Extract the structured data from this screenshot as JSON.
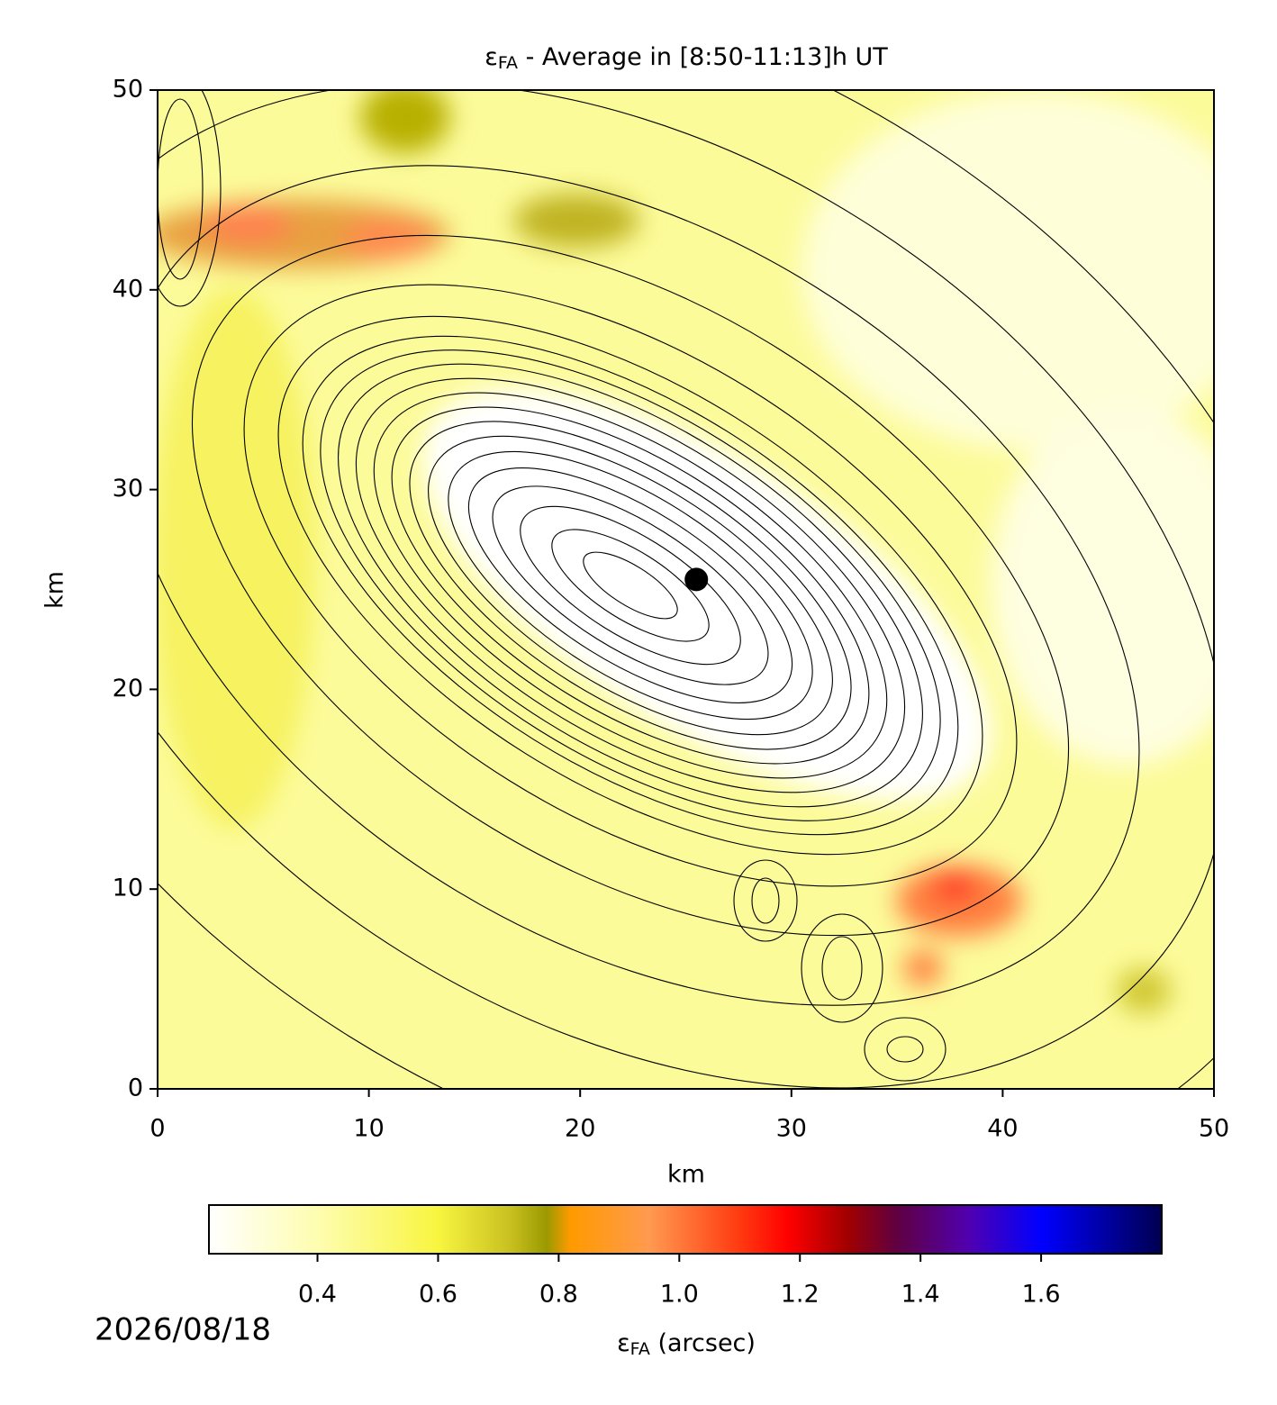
{
  "chart_data": {
    "type": "contour-map",
    "title": {
      "symbol": "ε",
      "subscript": "FA",
      "text": " - Average in [8:50-11:13]h UT"
    },
    "xlabel": "km",
    "ylabel": "km",
    "xlim": [
      0,
      50
    ],
    "ylim": [
      0,
      50
    ],
    "xticks": [
      0,
      10,
      20,
      30,
      40,
      50
    ],
    "yticks": [
      0,
      10,
      20,
      30,
      40,
      50
    ],
    "points": {
      "x": [
        25.5
      ],
      "y": [
        25.5
      ],
      "color": "#000000"
    },
    "colorbar": {
      "label": {
        "symbol": "ε",
        "subscript": "FA",
        "text": " (arcsec)"
      },
      "clim": [
        0.22,
        1.8
      ],
      "ticks": [
        {
          "value": 0.4,
          "label": "0.4"
        },
        {
          "value": 0.6,
          "label": "0.6"
        },
        {
          "value": 0.8,
          "label": "0.8"
        },
        {
          "value": 1.0,
          "label": "1.0"
        },
        {
          "value": 1.2,
          "label": "1.2"
        },
        {
          "value": 1.4,
          "label": "1.4"
        },
        {
          "value": 1.6,
          "label": "1.6"
        }
      ],
      "colormap": [
        {
          "value": 0.22,
          "color": "#ffffff"
        },
        {
          "value": 0.4,
          "color": "#fefdb0"
        },
        {
          "value": 0.6,
          "color": "#f8f540"
        },
        {
          "value": 0.72,
          "color": "#c8c020"
        },
        {
          "value": 0.78,
          "color": "#9a9a00"
        },
        {
          "value": 0.82,
          "color": "#ff9a00"
        },
        {
          "value": 0.95,
          "color": "#ff9a50"
        },
        {
          "value": 1.1,
          "color": "#ff3a10"
        },
        {
          "value": 1.18,
          "color": "#ff0000"
        },
        {
          "value": 1.28,
          "color": "#a00000"
        },
        {
          "value": 1.36,
          "color": "#600040"
        },
        {
          "value": 1.48,
          "color": "#5000b0"
        },
        {
          "value": 1.6,
          "color": "#0000ff"
        },
        {
          "value": 1.8,
          "color": "#000050"
        }
      ]
    },
    "date": "2026/08/18"
  }
}
